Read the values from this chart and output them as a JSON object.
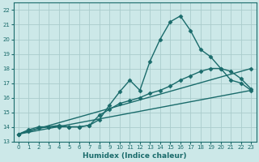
{
  "xlabel": "Humidex (Indice chaleur)",
  "bg_color": "#cce8e8",
  "grid_color": "#aacccc",
  "line_color": "#1a6b6b",
  "xlim": [
    -0.5,
    23.5
  ],
  "ylim": [
    13,
    22.5
  ],
  "xticks": [
    0,
    1,
    2,
    3,
    4,
    5,
    6,
    7,
    8,
    9,
    10,
    11,
    12,
    13,
    14,
    15,
    16,
    17,
    18,
    19,
    20,
    21,
    22,
    23
  ],
  "yticks": [
    13,
    14,
    15,
    16,
    17,
    18,
    19,
    20,
    21,
    22
  ],
  "series": [
    {
      "x": [
        0,
        1,
        2,
        3,
        4,
        5,
        6,
        7,
        8,
        9,
        10,
        11,
        12,
        13,
        14,
        15,
        16,
        17,
        18,
        19,
        20,
        21,
        22,
        23
      ],
      "y": [
        13.5,
        13.8,
        14.0,
        14.0,
        14.1,
        14.0,
        14.0,
        14.1,
        14.5,
        15.5,
        16.4,
        17.2,
        16.5,
        18.5,
        20.0,
        21.2,
        21.6,
        20.6,
        19.3,
        18.8,
        18.0,
        17.2,
        17.0,
        16.5
      ],
      "marker": "D",
      "markersize": 2.5,
      "lw": 1.0
    },
    {
      "x": [
        0,
        23
      ],
      "y": [
        13.5,
        18.0
      ],
      "marker": "D",
      "markersize": 2.5,
      "lw": 1.0
    },
    {
      "x": [
        0,
        1,
        2,
        3,
        4,
        5,
        6,
        7,
        8,
        9,
        10,
        11,
        12,
        13,
        14,
        15,
        16,
        17,
        18,
        19,
        20,
        21,
        22,
        23
      ],
      "y": [
        13.5,
        13.7,
        13.9,
        14.0,
        14.0,
        14.0,
        14.0,
        14.1,
        14.8,
        15.2,
        15.6,
        15.8,
        16.0,
        16.3,
        16.5,
        16.8,
        17.2,
        17.5,
        17.8,
        18.0,
        18.0,
        17.8,
        17.3,
        16.6
      ],
      "marker": "D",
      "markersize": 2.5,
      "lw": 1.0
    },
    {
      "x": [
        0,
        23
      ],
      "y": [
        13.5,
        16.5
      ],
      "marker": null,
      "markersize": 0,
      "lw": 1.0
    }
  ]
}
